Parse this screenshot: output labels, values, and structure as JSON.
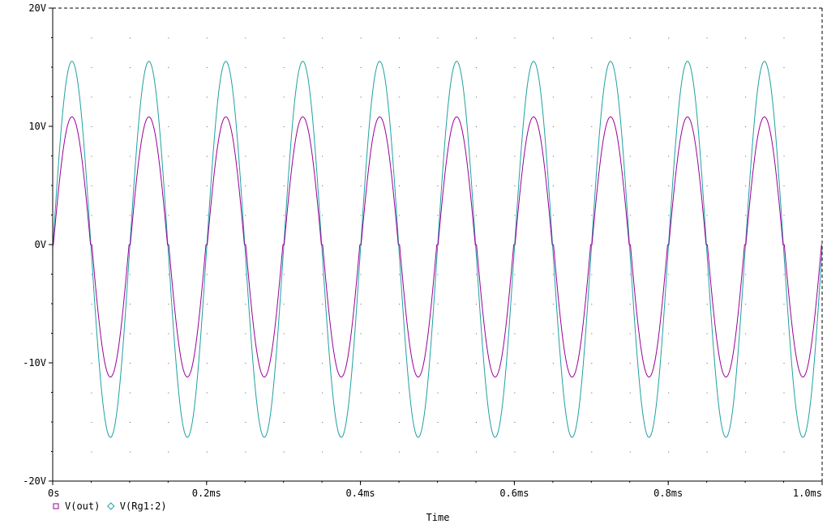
{
  "chart_data": {
    "type": "line",
    "xlabel": "Time",
    "x_unit": "ms",
    "xlim": [
      0,
      1.0
    ],
    "ylim": [
      -20,
      20
    ],
    "x_ticks": [
      {
        "value": 0,
        "label": "0s"
      },
      {
        "value": 0.2,
        "label": "0.2ms"
      },
      {
        "value": 0.4,
        "label": "0.4ms"
      },
      {
        "value": 0.6,
        "label": "0.6ms"
      },
      {
        "value": 0.8,
        "label": "0.8ms"
      },
      {
        "value": 1.0,
        "label": "1.0ms"
      }
    ],
    "y_ticks": [
      {
        "value": 20,
        "label": "20V"
      },
      {
        "value": 10,
        "label": "10V"
      },
      {
        "value": 0,
        "label": "0V"
      },
      {
        "value": -10,
        "label": "-10V"
      },
      {
        "value": -20,
        "label": "-20V"
      }
    ],
    "grid": "dotted",
    "legend_position": "bottom-left",
    "series": [
      {
        "name": "V(out)",
        "color": "#990099",
        "marker": "square",
        "shape": "sine with dead zone near 0V",
        "amplitude_pos": 10.8,
        "amplitude_neg": -11.2,
        "frequency_khz": 10,
        "phase_zero_ms": 0.0,
        "dead_zone_v": 0.6
      },
      {
        "name": "V(Rg1:2)",
        "color": "#20a0a0",
        "marker": "diamond",
        "shape": "sine",
        "amplitude_pos": 15.5,
        "amplitude_neg": -16.3,
        "frequency_khz": 10,
        "phase_zero_ms": 0.0,
        "offset_v": -0.4
      }
    ]
  }
}
